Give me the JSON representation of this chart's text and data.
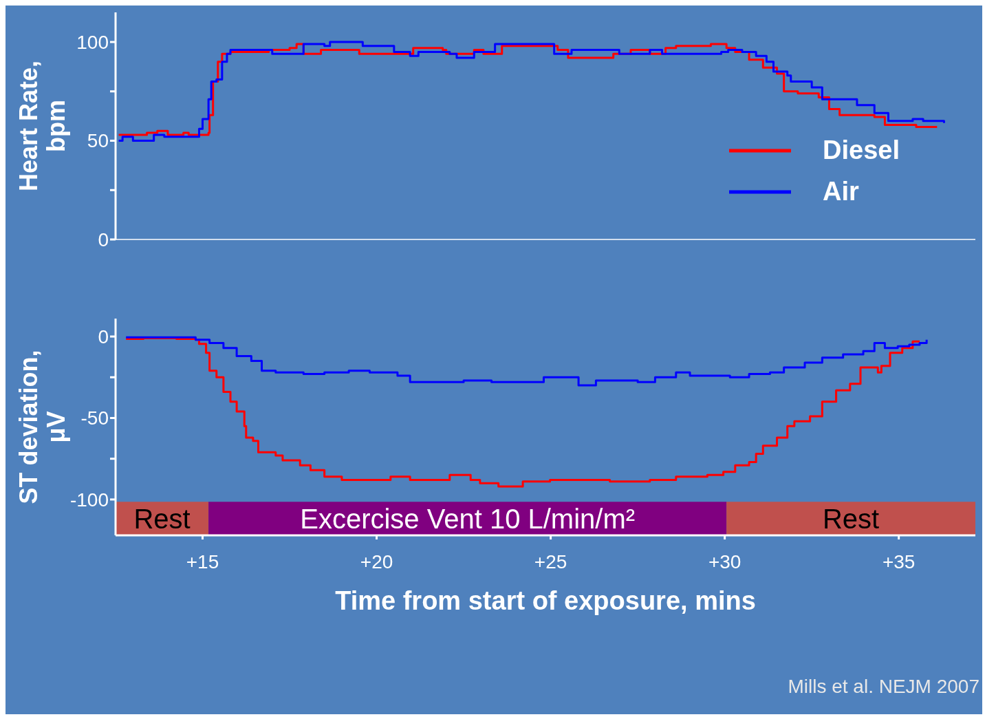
{
  "chart_data": [
    {
      "type": "step",
      "ylabel": "Heart Rate, bpm",
      "xlim": [
        12.5,
        37.2
      ],
      "ylim": [
        0,
        115
      ],
      "yticks": [
        0,
        {
          "value": 25,
          "label": null
        },
        50,
        {
          "value": 75,
          "label": null
        },
        100
      ],
      "tick_labels": "y",
      "legend": "right",
      "series": [
        {
          "name": "Diesel",
          "color": "#ff0000",
          "x": [
            12.59,
            13.3,
            13.4,
            13.7,
            14.0,
            14.45,
            14.6,
            15.17,
            15.2,
            15.3,
            15.44,
            15.56,
            15.8,
            16.26,
            16.9,
            17.3,
            17.5,
            17.7,
            17.9,
            18.4,
            19.4,
            19.5,
            20.4,
            20.96,
            21.05,
            21.9,
            22.0,
            22.7,
            22.8,
            23.07,
            23.6,
            24.6,
            25.2,
            25.5,
            26.3,
            26.8,
            27.3,
            27.85,
            28.3,
            28.6,
            29.6,
            30.05,
            30.3,
            30.7,
            31.1,
            31.5,
            31.7,
            32.1,
            32.7,
            33.0,
            33.3,
            34.3,
            34.6,
            35.3,
            35.5,
            36.1
          ],
          "values": [
            53,
            53,
            54,
            55,
            53,
            54,
            53,
            54,
            63,
            80,
            90,
            94,
            95,
            95,
            96,
            96,
            97,
            99,
            94,
            96,
            96,
            94,
            94,
            94,
            97,
            96,
            94,
            94,
            96,
            94,
            98,
            98,
            96,
            92,
            92,
            94,
            96,
            94,
            97,
            98,
            99,
            97,
            95,
            91,
            87,
            84,
            75,
            74,
            72,
            66,
            63,
            62,
            58,
            58,
            57,
            57
          ]
        },
        {
          "name": "Air",
          "color": "#0000ff",
          "x": [
            12.59,
            12.7,
            13.0,
            13.5,
            13.6,
            13.9,
            14.8,
            14.9,
            15.0,
            15.17,
            15.25,
            15.4,
            15.56,
            15.7,
            15.8,
            16.9,
            17.0,
            17.5,
            17.9,
            18.5,
            18.66,
            19.5,
            19.6,
            20.4,
            20.5,
            20.96,
            21.2,
            22.1,
            22.3,
            22.7,
            22.8,
            23.4,
            24.4,
            24.98,
            25.1,
            25.6,
            26.1,
            26.97,
            27.85,
            28.2,
            29.9,
            30.1,
            30.5,
            30.9,
            31.2,
            31.4,
            31.8,
            31.9,
            32.5,
            32.8,
            33.4,
            33.8,
            34.3,
            34.7,
            35.1,
            35.4,
            35.7,
            36.3
          ],
          "values": [
            50,
            52,
            50,
            50,
            53,
            52,
            52,
            56,
            61,
            71,
            80,
            81,
            90,
            94,
            96,
            96,
            94,
            94,
            99,
            98,
            100,
            100,
            98,
            98,
            95,
            93,
            95,
            94,
            92,
            92,
            95,
            99,
            99,
            99,
            94,
            96,
            96,
            94,
            96,
            94,
            95,
            96,
            95,
            93,
            90,
            85,
            83,
            80,
            77,
            71,
            71,
            68,
            64,
            60,
            60,
            61,
            60,
            59
          ]
        }
      ]
    },
    {
      "type": "step",
      "ylabel": "ST deviation, μV",
      "xlabel": "Time from start of exposure, mins",
      "xlim": [
        12.5,
        37.2
      ],
      "ylim": [
        -122,
        11
      ],
      "xticks": [
        {
          "value": 15,
          "label": "+15"
        },
        {
          "value": 20,
          "label": "+20"
        },
        {
          "value": 25,
          "label": "+25"
        },
        {
          "value": 30,
          "label": "+30"
        },
        {
          "value": 35,
          "label": "+35"
        }
      ],
      "yticks": [
        -100,
        {
          "value": -75,
          "label": null
        },
        -50,
        {
          "value": -25,
          "label": null
        },
        0
      ],
      "annotations": [
        "Mills et al. NEJM 2007"
      ],
      "bands": [
        {
          "axis": "x",
          "from": 12.5,
          "to": 15.17,
          "label": "Rest",
          "color": "#c0504d"
        },
        {
          "axis": "x",
          "from": 15.17,
          "to": 30.05,
          "label": "Excercise Vent 10 L/min/m²",
          "color": "#800080"
        },
        {
          "axis": "x",
          "from": 30.05,
          "to": 37.2,
          "label": "Rest",
          "color": "#c0504d"
        }
      ],
      "series": [
        {
          "color": "#ff0000",
          "x": [
            12.8,
            13.3,
            14.25,
            14.8,
            14.9,
            15.1,
            15.2,
            15.4,
            15.6,
            15.8,
            15.98,
            16.2,
            16.25,
            16.45,
            16.6,
            17.1,
            17.3,
            17.8,
            18.1,
            18.5,
            19.0,
            20.0,
            20.4,
            20.96,
            21.7,
            22.1,
            22.7,
            22.97,
            23.5,
            24.2,
            24.98,
            25.9,
            26.7,
            27.85,
            28.6,
            29.5,
            29.96,
            30.3,
            30.7,
            30.9,
            31.1,
            31.5,
            31.8,
            32.0,
            32.45,
            32.8,
            33.2,
            33.6,
            33.9,
            34.4,
            34.5,
            34.75,
            35.1,
            35.4,
            35.6
          ],
          "values": [
            -1.5,
            -1,
            -1.5,
            -2,
            -4.5,
            -10,
            -21,
            -25,
            -34,
            -40,
            -46,
            -55,
            -62,
            -64,
            -71,
            -73,
            -76,
            -79,
            -82,
            -86,
            -88,
            -88,
            -86,
            -88,
            -88,
            -85,
            -88,
            -90,
            -92,
            -89,
            -88,
            -88,
            -89,
            -88,
            -86,
            -85,
            -83,
            -79,
            -77,
            -72,
            -67,
            -62,
            -55,
            -52,
            -49,
            -40,
            -33,
            -29,
            -19,
            -22,
            -18,
            -10,
            -7,
            -3,
            -3
          ]
        },
        {
          "color": "#0000ff",
          "x": [
            12.8,
            14.25,
            14.8,
            15.2,
            15.6,
            15.98,
            16.4,
            16.7,
            17.1,
            17.9,
            18.5,
            19.2,
            19.8,
            20.6,
            20.96,
            21.7,
            22.5,
            23.3,
            24.0,
            24.8,
            25.4,
            25.8,
            26.3,
            27.1,
            27.5,
            28.0,
            28.6,
            29.0,
            29.6,
            30.15,
            30.7,
            31.3,
            31.7,
            32.3,
            32.8,
            33.4,
            33.98,
            34.3,
            34.6,
            34.97,
            35.3,
            35.6,
            35.8
          ],
          "values": [
            -0.5,
            -0.5,
            -2,
            -4,
            -7,
            -12,
            -15,
            -21,
            -22,
            -23,
            -22,
            -21,
            -22,
            -24,
            -28,
            -28,
            -27,
            -28,
            -28,
            -25,
            -25,
            -30,
            -27,
            -27,
            -28,
            -25,
            -22,
            -24,
            -24,
            -25,
            -23,
            -22,
            -19,
            -16,
            -13,
            -11,
            -9,
            -4,
            -7,
            -6,
            -5,
            -4,
            -2
          ]
        }
      ]
    }
  ]
}
